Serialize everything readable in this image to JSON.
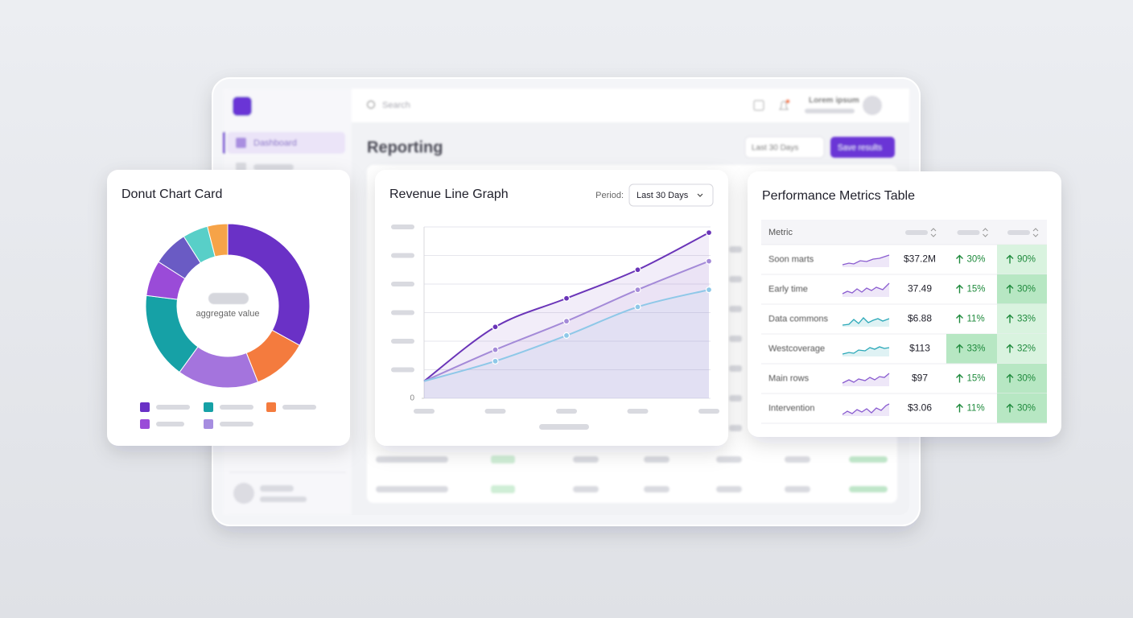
{
  "background": {
    "search": "Search",
    "nav_item": "Dashboard",
    "page_title": "Reporting",
    "period": "Last 30 Days",
    "button": "Save results",
    "user": "Lorem ipsum"
  },
  "chart_data": [
    {
      "type": "pie",
      "title": "Donut Chart Card",
      "center_label": "aggregate value",
      "values": [
        33,
        11,
        16,
        17,
        7,
        7,
        5,
        4
      ],
      "colors": [
        "#6a31c6",
        "#f47b3e",
        "#a474dd",
        "#16a1a6",
        "#9a4bd8",
        "#6a5bc4",
        "#58cfc8",
        "#f6a348"
      ]
    },
    {
      "type": "line",
      "title": "Revenue Line Graph",
      "period_label": "Period:",
      "period": "Last 30 Days",
      "categories": [
        null,
        null,
        null,
        null,
        null
      ],
      "series": [
        {
          "color": "#6a34b8",
          "values": [
            0.6,
            2.5,
            3.5,
            4.5,
            5.8
          ]
        },
        {
          "color": "#a48ad8",
          "values": [
            0.6,
            1.7,
            2.7,
            3.8,
            4.8
          ]
        },
        {
          "color": "#8ec8e8",
          "values": [
            0.6,
            1.3,
            2.2,
            3.2,
            3.8
          ]
        }
      ],
      "ylim": [
        0,
        6
      ],
      "yticks": [
        0
      ],
      "grid": true
    }
  ],
  "table": {
    "title": "Performance Metrics Table",
    "header": [
      "Metric"
    ],
    "rows": [
      [
        "Soon marts",
        "$37.2M",
        "30%",
        "90%"
      ],
      [
        "Early time",
        "37.49",
        "15%",
        "30%"
      ],
      [
        "Data commons",
        "$6.88",
        "11%",
        "33%"
      ],
      [
        "Westcoverage",
        "$113",
        "33%",
        "32%"
      ],
      [
        "Main rows",
        "$97",
        "15%",
        "30%"
      ],
      [
        "Intervention",
        "$3.06",
        "11%",
        "30%"
      ]
    ]
  }
}
